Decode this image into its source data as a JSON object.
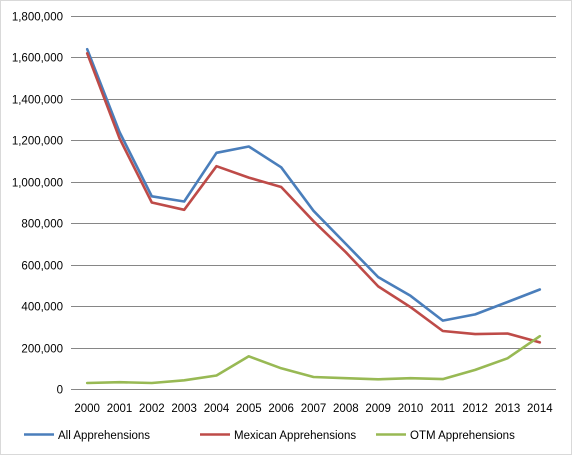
{
  "chart_data": {
    "type": "line",
    "title": "",
    "xlabel": "",
    "ylabel": "",
    "x": [
      "2000",
      "2001",
      "2002",
      "2003",
      "2004",
      "2005",
      "2006",
      "2007",
      "2008",
      "2009",
      "2010",
      "2011",
      "2012",
      "2013",
      "2014"
    ],
    "ylim": [
      0,
      1800000
    ],
    "y_ticks": [
      0,
      200000,
      400000,
      600000,
      800000,
      1000000,
      1200000,
      1400000,
      1600000,
      1800000
    ],
    "y_tick_labels": [
      "0",
      "200,000",
      "400,000",
      "600,000",
      "800,000",
      "1,000,000",
      "1,200,000",
      "1,400,000",
      "1,600,000",
      "1,800,000"
    ],
    "grid": true,
    "legend_position": "bottom",
    "series": [
      {
        "name": "All Apprehensions",
        "color": "#4a7ebb",
        "values": [
          1640000,
          1240000,
          930000,
          905000,
          1140000,
          1170000,
          1070000,
          860000,
          700000,
          540000,
          450000,
          330000,
          360000,
          420000,
          480000
        ]
      },
      {
        "name": "Mexican Apprehensions",
        "color": "#be4b48",
        "values": [
          1620000,
          1210000,
          900000,
          865000,
          1075000,
          1020000,
          975000,
          810000,
          660000,
          495000,
          395000,
          280000,
          265000,
          268000,
          225000
        ]
      },
      {
        "name": "OTM Apprehensions",
        "color": "#98b954",
        "values": [
          29000,
          33000,
          29000,
          42000,
          65000,
          158000,
          100000,
          58000,
          52000,
          47000,
          52000,
          48000,
          92000,
          148000,
          255000
        ]
      }
    ]
  }
}
